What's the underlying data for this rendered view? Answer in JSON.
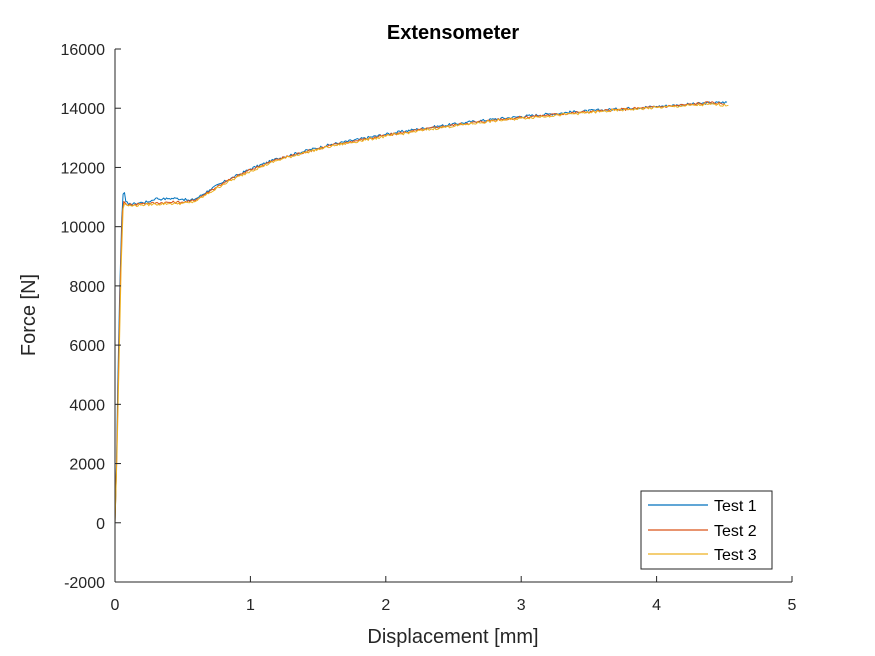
{
  "chart_data": {
    "type": "line",
    "title": "Extensometer",
    "xlabel": "Displacement [mm]",
    "ylabel": "Force [N]",
    "xlim": [
      0,
      5
    ],
    "ylim": [
      -2000,
      16000
    ],
    "xticks": [
      0,
      1,
      2,
      3,
      4,
      5
    ],
    "yticks": [
      -2000,
      0,
      2000,
      4000,
      6000,
      8000,
      10000,
      12000,
      14000,
      16000
    ],
    "grid": false,
    "legend_position": "bottom-right",
    "series": [
      {
        "name": "Test 1",
        "color": "#0072BD",
        "points": [
          [
            0,
            0
          ],
          [
            0.01,
            1800
          ],
          [
            0.02,
            4500
          ],
          [
            0.035,
            7800
          ],
          [
            0.05,
            10300
          ],
          [
            0.06,
            11100
          ],
          [
            0.07,
            11150
          ],
          [
            0.08,
            10850
          ],
          [
            0.1,
            10750
          ],
          [
            0.15,
            10780
          ],
          [
            0.2,
            10820
          ],
          [
            0.25,
            10840
          ],
          [
            0.3,
            10960
          ],
          [
            0.35,
            10930
          ],
          [
            0.4,
            10950
          ],
          [
            0.45,
            10960
          ],
          [
            0.5,
            10930
          ],
          [
            0.55,
            10880
          ],
          [
            0.6,
            10950
          ],
          [
            0.7,
            11250
          ],
          [
            0.8,
            11500
          ],
          [
            1.0,
            11950
          ],
          [
            1.2,
            12300
          ],
          [
            1.4,
            12550
          ],
          [
            1.6,
            12780
          ],
          [
            1.8,
            12950
          ],
          [
            2.0,
            13120
          ],
          [
            2.2,
            13270
          ],
          [
            2.4,
            13400
          ],
          [
            2.6,
            13520
          ],
          [
            2.8,
            13630
          ],
          [
            3.0,
            13720
          ],
          [
            3.2,
            13800
          ],
          [
            3.4,
            13880
          ],
          [
            3.6,
            13940
          ],
          [
            3.8,
            14000
          ],
          [
            4.0,
            14060
          ],
          [
            4.2,
            14120
          ],
          [
            4.4,
            14180
          ],
          [
            4.52,
            14200
          ]
        ]
      },
      {
        "name": "Test 2",
        "color": "#D95319",
        "points": [
          [
            0,
            0
          ],
          [
            0.012,
            2000
          ],
          [
            0.025,
            5000
          ],
          [
            0.04,
            8300
          ],
          [
            0.055,
            10500
          ],
          [
            0.065,
            10850
          ],
          [
            0.08,
            10780
          ],
          [
            0.1,
            10730
          ],
          [
            0.15,
            10760
          ],
          [
            0.2,
            10780
          ],
          [
            0.3,
            10800
          ],
          [
            0.4,
            10820
          ],
          [
            0.5,
            10830
          ],
          [
            0.55,
            10850
          ],
          [
            0.6,
            10920
          ],
          [
            0.7,
            11200
          ],
          [
            0.8,
            11480
          ],
          [
            1.0,
            11920
          ],
          [
            1.2,
            12280
          ],
          [
            1.4,
            12520
          ],
          [
            1.6,
            12750
          ],
          [
            1.8,
            12920
          ],
          [
            2.0,
            13080
          ],
          [
            2.2,
            13230
          ],
          [
            2.4,
            13370
          ],
          [
            2.6,
            13490
          ],
          [
            2.8,
            13600
          ],
          [
            3.0,
            13690
          ],
          [
            3.2,
            13770
          ],
          [
            3.4,
            13850
          ],
          [
            3.6,
            13910
          ],
          [
            3.8,
            13980
          ],
          [
            4.0,
            14040
          ],
          [
            4.2,
            14110
          ],
          [
            4.4,
            14190
          ],
          [
            4.5,
            14150
          ]
        ]
      },
      {
        "name": "Test 3",
        "color": "#EDB120",
        "points": [
          [
            0,
            0
          ],
          [
            0.015,
            2300
          ],
          [
            0.03,
            5500
          ],
          [
            0.045,
            8600
          ],
          [
            0.06,
            10600
          ],
          [
            0.07,
            10780
          ],
          [
            0.09,
            10720
          ],
          [
            0.12,
            10700
          ],
          [
            0.2,
            10740
          ],
          [
            0.3,
            10760
          ],
          [
            0.4,
            10780
          ],
          [
            0.5,
            10790
          ],
          [
            0.55,
            10810
          ],
          [
            0.6,
            10870
          ],
          [
            0.7,
            11150
          ],
          [
            0.8,
            11430
          ],
          [
            1.0,
            11880
          ],
          [
            1.2,
            12240
          ],
          [
            1.4,
            12500
          ],
          [
            1.6,
            12720
          ],
          [
            1.8,
            12890
          ],
          [
            2.0,
            13050
          ],
          [
            2.2,
            13200
          ],
          [
            2.4,
            13340
          ],
          [
            2.6,
            13460
          ],
          [
            2.8,
            13570
          ],
          [
            3.0,
            13660
          ],
          [
            3.2,
            13740
          ],
          [
            3.4,
            13820
          ],
          [
            3.6,
            13890
          ],
          [
            3.8,
            13960
          ],
          [
            4.0,
            14020
          ],
          [
            4.2,
            14080
          ],
          [
            4.4,
            14130
          ],
          [
            4.53,
            14100
          ]
        ]
      }
    ]
  }
}
